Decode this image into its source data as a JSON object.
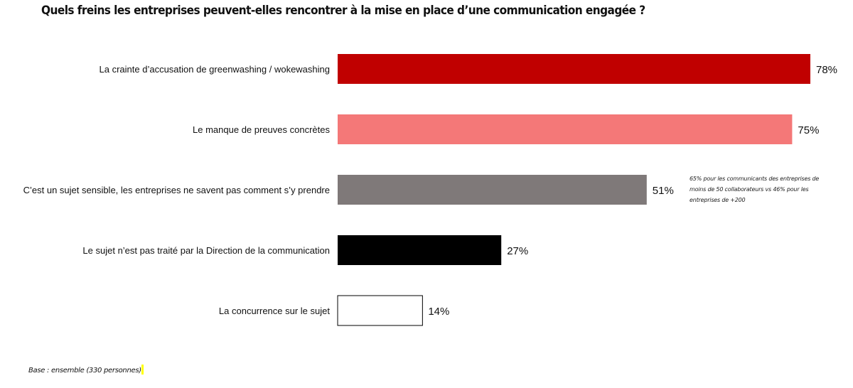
{
  "chart_data": {
    "type": "bar",
    "orientation": "horizontal",
    "title": "Quels freins les entreprises peuvent-elles rencontrer à la mise en place d’une communication engagée ?",
    "categories": [
      "La crainte d’accusation de greenwashing / wokewashing",
      "Le manque de preuves concrètes",
      "C’est un sujet sensible, les entreprises ne savent pas comment s’y prendre",
      "Le sujet n’est pas traité par la Direction de la communication",
      "La concurrence sur le sujet"
    ],
    "values": [
      78,
      75,
      51,
      27,
      14
    ],
    "value_labels": [
      "78%",
      "75%",
      "51%",
      "27%",
      "14%"
    ],
    "bar_colors": [
      "#c00000",
      "#f47878",
      "#7f7979",
      "#000000",
      "#ffffff"
    ],
    "xlim": [
      0,
      100
    ],
    "grid": false,
    "legend": "none",
    "annotation": "65% pour les communicants des entreprises de moins de 50 collaborateurs vs 46% pour les entreprises de +200"
  },
  "footnote": "Base : ensemble (330 personnes)"
}
